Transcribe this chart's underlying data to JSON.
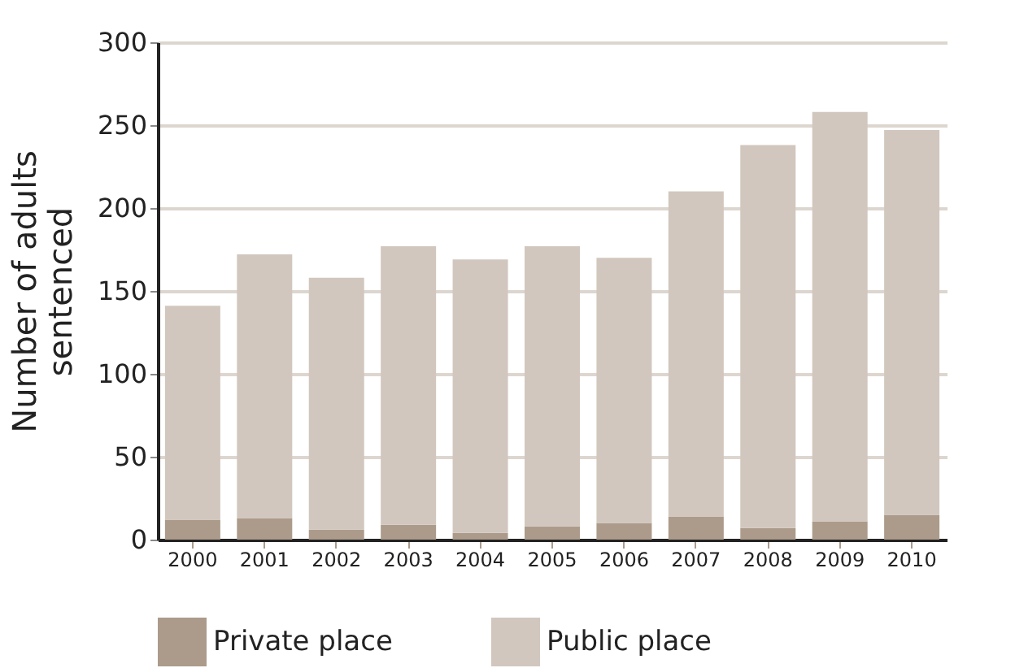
{
  "chart_data": {
    "type": "bar",
    "stacked": true,
    "ylabel": "Number of adults\nsentenced",
    "categories": [
      "2000",
      "2001",
      "2002",
      "2003",
      "2004",
      "2005",
      "2006",
      "2007",
      "2008",
      "2009",
      "2010"
    ],
    "series": [
      {
        "name": "Private place",
        "color": "#ac9b8b",
        "values": [
          12,
          13,
          6,
          9,
          4,
          8,
          10,
          14,
          7,
          11,
          15
        ]
      },
      {
        "name": "Public place",
        "color": "#d1c7be",
        "values": [
          129,
          159,
          152,
          168,
          165,
          169,
          160,
          196,
          231,
          247,
          232
        ]
      }
    ],
    "ylim": [
      0,
      300
    ],
    "yticks": [
      0,
      50,
      100,
      150,
      200,
      250,
      300
    ],
    "grid": "y",
    "legend": "bottom"
  }
}
